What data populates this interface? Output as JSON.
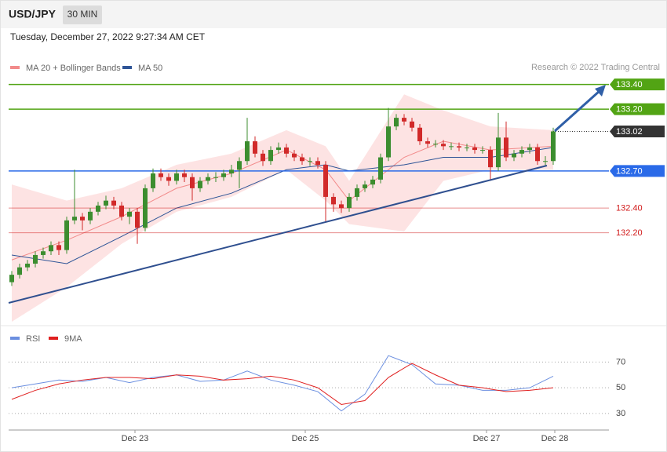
{
  "header": {
    "symbol": "USD/JPY",
    "interval": "30 MIN",
    "timestamp": "Tuesday, December 27, 2022 9:27:34 AM CET",
    "credit": "Research © 2022 Trading Central"
  },
  "chart_data": [
    {
      "type": "candlestick",
      "up_color": "#3c8d2f",
      "down_color": "#d12a2a",
      "open": [
        131.8,
        131.86,
        131.92,
        131.95,
        132.02,
        132.05,
        132.1,
        132.06,
        132.3,
        132.33,
        132.3,
        132.37,
        132.42,
        132.46,
        132.42,
        132.33,
        132.37,
        132.24,
        132.56,
        132.68,
        132.65,
        132.62,
        132.68,
        132.65,
        132.56,
        132.62,
        132.65,
        132.65,
        132.68,
        132.71,
        132.78,
        132.94,
        132.84,
        132.78,
        132.87,
        132.89,
        132.84,
        132.81,
        132.78,
        132.78,
        132.75,
        132.49,
        132.43,
        132.4,
        132.49,
        132.56,
        132.59,
        132.63,
        132.81,
        133.06,
        133.13,
        133.1,
        133.05,
        132.94,
        132.92,
        132.92,
        132.9,
        132.9,
        132.89,
        132.89,
        132.87,
        132.87,
        132.73,
        132.97,
        132.81,
        132.84,
        132.87,
        132.89,
        132.78,
        132.78
      ],
      "high": [
        131.89,
        131.95,
        131.98,
        132.05,
        132.08,
        132.13,
        132.13,
        132.33,
        132.71,
        132.36,
        132.4,
        132.45,
        132.5,
        132.49,
        132.45,
        132.4,
        132.4,
        132.59,
        132.72,
        132.72,
        132.68,
        132.71,
        132.71,
        132.68,
        132.65,
        132.68,
        132.69,
        132.71,
        132.75,
        132.81,
        133.13,
        132.98,
        132.87,
        132.9,
        132.93,
        132.92,
        132.87,
        132.84,
        132.81,
        132.81,
        132.78,
        132.52,
        132.46,
        132.52,
        132.59,
        132.62,
        132.66,
        132.84,
        133.21,
        133.16,
        133.16,
        133.13,
        133.08,
        132.97,
        132.95,
        132.95,
        132.93,
        132.93,
        132.92,
        132.92,
        132.9,
        132.9,
        133.17,
        133.1,
        132.87,
        132.9,
        132.92,
        132.92,
        132.82,
        133.05
      ],
      "low": [
        131.77,
        131.83,
        131.89,
        131.92,
        131.99,
        132.02,
        132.02,
        132.03,
        132.27,
        132.22,
        132.27,
        132.34,
        132.39,
        132.39,
        132.3,
        132.27,
        132.11,
        132.21,
        132.53,
        132.62,
        132.58,
        132.59,
        132.61,
        132.46,
        132.53,
        132.59,
        132.61,
        132.62,
        132.65,
        132.56,
        132.75,
        132.81,
        132.74,
        132.75,
        132.84,
        132.81,
        132.78,
        132.75,
        132.74,
        132.72,
        132.29,
        132.37,
        132.36,
        132.37,
        132.46,
        132.53,
        132.56,
        132.6,
        132.78,
        133.03,
        133.07,
        133.02,
        132.91,
        132.89,
        132.89,
        132.87,
        132.87,
        132.86,
        132.86,
        132.84,
        132.84,
        132.62,
        132.7,
        132.78,
        132.78,
        132.81,
        132.84,
        132.75,
        132.74,
        132.75
      ],
      "close": [
        131.86,
        131.92,
        131.95,
        132.02,
        132.05,
        132.1,
        132.06,
        132.3,
        132.33,
        132.3,
        132.37,
        132.42,
        132.46,
        132.42,
        132.33,
        132.37,
        132.24,
        132.56,
        132.68,
        132.65,
        132.62,
        132.68,
        132.65,
        132.56,
        132.62,
        132.65,
        132.65,
        132.68,
        132.71,
        132.78,
        132.94,
        132.84,
        132.78,
        132.87,
        132.89,
        132.84,
        132.81,
        132.78,
        132.78,
        132.75,
        132.49,
        132.43,
        132.4,
        132.49,
        132.56,
        132.59,
        132.63,
        132.81,
        133.06,
        133.13,
        133.1,
        133.05,
        132.94,
        132.92,
        132.92,
        132.9,
        132.9,
        132.89,
        132.89,
        132.87,
        132.87,
        132.73,
        132.97,
        132.81,
        132.84,
        132.87,
        132.89,
        132.78,
        132.78,
        133.02
      ],
      "overlays": [
        {
          "name": "MA 20 + Bollinger Bands",
          "color": "#f28b8b",
          "band_color": "#fde3e3",
          "x": [
            0,
            7,
            14,
            21,
            28,
            35,
            40,
            43,
            50,
            55,
            61,
            69
          ],
          "upper": [
            132.59,
            132.46,
            132.56,
            132.75,
            132.84,
            133.03,
            132.9,
            132.62,
            133.32,
            133.19,
            133.06,
            133.03
          ],
          "values": [
            131.98,
            132.14,
            132.33,
            132.56,
            132.68,
            132.87,
            132.71,
            132.46,
            132.81,
            132.94,
            132.87,
            132.9
          ],
          "lower": [
            131.48,
            131.76,
            132.11,
            132.37,
            132.49,
            132.71,
            132.46,
            132.27,
            132.21,
            132.62,
            132.71,
            132.71
          ]
        },
        {
          "name": "MA 50",
          "color": "#2f5597",
          "x": [
            0,
            7,
            14,
            21,
            28,
            35,
            40,
            43,
            50,
            55,
            61,
            69
          ],
          "values": [
            132.02,
            131.95,
            132.17,
            132.4,
            132.52,
            132.71,
            132.75,
            132.7,
            132.75,
            132.81,
            132.81,
            132.89
          ]
        }
      ],
      "levels": [
        {
          "value": 133.4,
          "label": "133.40",
          "color": "#52a414",
          "style": "box",
          "line": "solid"
        },
        {
          "value": 133.2,
          "label": "133.20",
          "color": "#52a414",
          "style": "box",
          "line": "solid"
        },
        {
          "value": 133.02,
          "label": "133.02",
          "color": "#333333",
          "style": "box",
          "line": "dotted"
        },
        {
          "value": 132.7,
          "label": "132.70",
          "color": "#2a6ae8",
          "style": "box",
          "line": "solid"
        },
        {
          "value": 132.4,
          "label": "132.40",
          "color": "#d11a1a",
          "style": "text",
          "line": "solid"
        },
        {
          "value": 132.2,
          "label": "132.20",
          "color": "#d11a1a",
          "style": "text",
          "line": "solid"
        }
      ],
      "xlim": [
        -0.4,
        76.1
      ],
      "ylim": [
        131.48,
        133.48
      ]
    },
    {
      "type": "line",
      "series": [
        {
          "name": "RSI",
          "color": "#6b8fe0",
          "x": [
            0,
            3,
            6,
            9,
            12,
            15,
            18,
            21,
            24,
            27,
            30,
            33,
            36,
            39,
            42,
            45,
            48,
            51,
            54,
            57,
            60,
            63,
            66,
            69
          ],
          "values": [
            50,
            53,
            56,
            55,
            58,
            54,
            58,
            60,
            55,
            56,
            63,
            56,
            52,
            47,
            32,
            45,
            75,
            68,
            53,
            52,
            48,
            48,
            50,
            59
          ]
        },
        {
          "name": "9MA",
          "color": "#e02020",
          "x": [
            0,
            3,
            6,
            9,
            12,
            15,
            18,
            21,
            24,
            27,
            30,
            33,
            36,
            39,
            42,
            45,
            48,
            51,
            54,
            57,
            60,
            63,
            66,
            69
          ],
          "values": [
            41,
            48,
            53,
            56,
            58,
            58,
            57,
            60,
            59,
            56,
            57,
            59,
            56,
            50,
            37,
            40,
            58,
            69,
            60,
            52,
            50,
            47,
            48,
            50
          ]
        }
      ],
      "xlim": [
        -0.4,
        76.1
      ],
      "ylim": [
        22,
        80
      ],
      "yticks": [
        30,
        50,
        70
      ],
      "grid": true,
      "xticks": [
        {
          "value": 15.7,
          "label": "Dec 23"
        },
        {
          "value": 37.4,
          "label": "Dec 25"
        },
        {
          "value": 60.5,
          "label": "Dec 27"
        },
        {
          "value": 69.2,
          "label": "Dec 28"
        }
      ]
    }
  ]
}
